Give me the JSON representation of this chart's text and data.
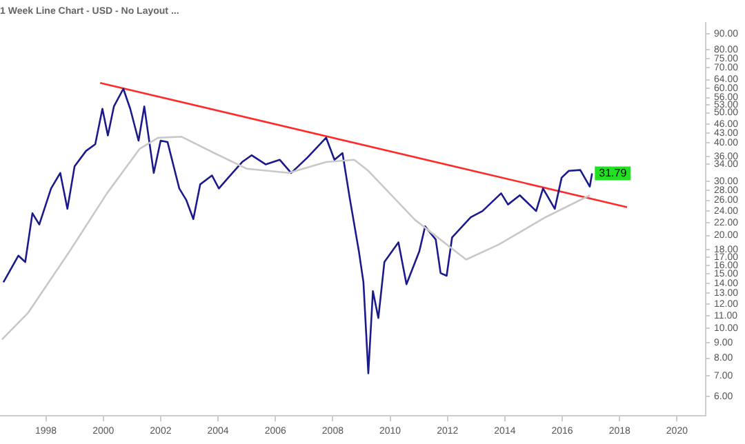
{
  "chart_data": {
    "type": "line",
    "title": "1 Week Line Chart - USD - No Layout ...",
    "log": "y",
    "xlim": [
      1996.4,
      2021
    ],
    "xticks": [
      1998,
      2000,
      2002,
      2004,
      2006,
      2008,
      2010,
      2012,
      2014,
      2016,
      2018,
      2020
    ],
    "ylim": [
      5.2,
      98
    ],
    "yticks": [
      {
        "value": 6,
        "label": "6.00"
      },
      {
        "value": 7,
        "label": "7.00"
      },
      {
        "value": 8,
        "label": "8.00"
      },
      {
        "value": 9,
        "label": "9.00"
      },
      {
        "value": 10,
        "label": "10.00"
      },
      {
        "value": 11,
        "label": "11.00"
      },
      {
        "value": 12,
        "label": "12.00"
      },
      {
        "value": 13,
        "label": "13.00"
      },
      {
        "value": 14,
        "label": "14.00"
      },
      {
        "value": 15,
        "label": "15.00"
      },
      {
        "value": 16,
        "label": "16.00"
      },
      {
        "value": 17,
        "label": "17.00"
      },
      {
        "value": 18,
        "label": "18.00"
      },
      {
        "value": 20,
        "label": "20.00"
      },
      {
        "value": 22,
        "label": "22.00"
      },
      {
        "value": 24,
        "label": "24.00"
      },
      {
        "value": 26,
        "label": "26.00"
      },
      {
        "value": 28,
        "label": "28.00"
      },
      {
        "value": 30,
        "label": "30.00"
      },
      {
        "value": 34,
        "label": "34.00"
      },
      {
        "value": 36,
        "label": "36.00"
      },
      {
        "value": 40,
        "label": "40.00"
      },
      {
        "value": 43,
        "label": "43.00"
      },
      {
        "value": 46,
        "label": "46.00"
      },
      {
        "value": 50,
        "label": "50.00"
      },
      {
        "value": 53,
        "label": "53.00"
      },
      {
        "value": 56,
        "label": "56.00"
      },
      {
        "value": 60,
        "label": "60.00"
      },
      {
        "value": 64,
        "label": "64.00"
      },
      {
        "value": 70,
        "label": "70.00"
      },
      {
        "value": 75,
        "label": "75.00"
      },
      {
        "value": 80,
        "label": "80.00"
      },
      {
        "value": 90,
        "label": "90.00"
      }
    ],
    "grid": false,
    "legend": false,
    "marker": "none",
    "annotations": [
      {
        "text": "31.79",
        "x": 2017.04,
        "y": 31.79
      }
    ],
    "series": [
      {
        "color": "#c8c8c8",
        "x": [
          1996.47,
          1997.37,
          1998.83,
          2000.13,
          2001.27,
          2001.92,
          2002.73,
          2003.87,
          2005.01,
          2006.47,
          2007.77,
          2008.75,
          2009.24,
          2010.86,
          2012.65,
          2013.79,
          2015.41,
          2016.96
        ],
        "values": [
          9.2,
          11.2,
          17.8,
          27.4,
          38.2,
          41.5,
          41.8,
          37.0,
          32.9,
          31.9,
          34.6,
          35.2,
          32.4,
          22.5,
          16.7,
          18.7,
          22.9,
          27.0
        ]
      },
      {
        "color": "#1a1a8c",
        "x": [
          1996.52,
          1997.04,
          1997.28,
          1997.53,
          1997.77,
          1998.18,
          1998.5,
          1998.75,
          1999.0,
          1999.4,
          1999.72,
          1999.97,
          2000.16,
          2000.37,
          2000.7,
          2000.94,
          2001.23,
          2001.43,
          2001.76,
          2002.0,
          2002.24,
          2002.65,
          2002.89,
          2003.14,
          2003.38,
          2003.79,
          2004.03,
          2004.36,
          2004.84,
          2005.17,
          2005.66,
          2006.15,
          2006.55,
          2007.12,
          2007.77,
          2008.06,
          2008.34,
          2008.59,
          2008.91,
          2009.07,
          2009.24,
          2009.4,
          2009.59,
          2009.8,
          2010.29,
          2010.57,
          2011.02,
          2011.22,
          2011.59,
          2011.76,
          2011.97,
          2012.16,
          2012.81,
          2013.22,
          2013.87,
          2014.11,
          2014.52,
          2015.09,
          2015.33,
          2015.74,
          2015.98,
          2016.23,
          2016.63,
          2016.96,
          2017.04
        ],
        "values": [
          14.1,
          17.2,
          16.4,
          23.6,
          21.7,
          28.4,
          31.9,
          24.4,
          33.5,
          37.6,
          39.5,
          51.5,
          42.2,
          52.4,
          59.8,
          51.5,
          40.6,
          52.4,
          31.9,
          40.6,
          40.2,
          28.4,
          26.1,
          22.6,
          29.3,
          31.3,
          28.4,
          30.8,
          34.6,
          36.4,
          34.0,
          35.2,
          31.9,
          35.8,
          41.5,
          35.2,
          37.0,
          26.5,
          17.8,
          14.1,
          7.15,
          13.2,
          10.8,
          16.4,
          19.0,
          13.9,
          17.8,
          21.4,
          19.4,
          15.1,
          14.8,
          19.7,
          22.9,
          24.0,
          27.4,
          25.2,
          27.0,
          24.0,
          28.4,
          24.4,
          30.8,
          32.4,
          32.6,
          28.8,
          31.79
        ]
      },
      {
        "color": "#ff2a2a",
        "x": [
          1999.89,
          2018.26
        ],
        "values": [
          62.5,
          24.7
        ]
      }
    ]
  }
}
